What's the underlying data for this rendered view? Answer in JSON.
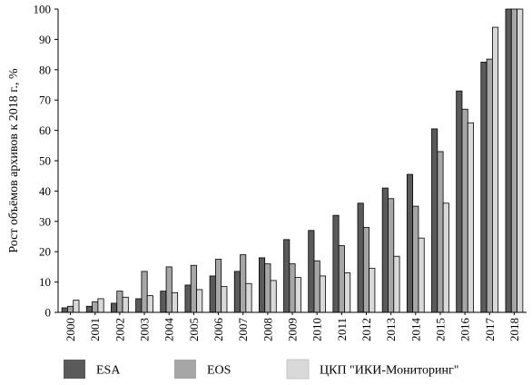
{
  "chart_data": {
    "type": "bar",
    "title": "",
    "xlabel": "",
    "ylabel": "Рост объёмов архивов к 2018 г., %",
    "ylim": [
      0,
      100
    ],
    "yticks": [
      0,
      10,
      20,
      30,
      40,
      50,
      60,
      70,
      80,
      90,
      100
    ],
    "grid": false,
    "legend_position": "bottom",
    "categories": [
      "2000",
      "2001",
      "2002",
      "2003",
      "2004",
      "2005",
      "2006",
      "2007",
      "2008",
      "2009",
      "2010",
      "2011",
      "2012",
      "2013",
      "2014",
      "2015",
      "2016",
      "2017",
      "2018"
    ],
    "series": [
      {
        "name": "ESA",
        "color": "#5a5a5a",
        "values": [
          1.5,
          2,
          3,
          4.5,
          7,
          9,
          12,
          13.5,
          18,
          24,
          27,
          32,
          36,
          41,
          45.5,
          60.5,
          73,
          82.5,
          100
        ]
      },
      {
        "name": "EOS",
        "color": "#a6a6a6",
        "values": [
          2,
          3.5,
          7,
          13.5,
          15,
          15.5,
          17.5,
          19,
          16,
          16,
          17,
          22,
          28,
          37.5,
          35,
          53,
          67,
          83.5,
          100
        ]
      },
      {
        "name": "ЦКП \"ИКИ-Мониторинг\"",
        "color": "#d9d9d9",
        "values": [
          4,
          4.5,
          5,
          5.5,
          6.5,
          7.5,
          8.5,
          9.5,
          10.5,
          11.5,
          12,
          13,
          14.5,
          18.5,
          24.5,
          36,
          62.5,
          94,
          100
        ]
      }
    ]
  }
}
